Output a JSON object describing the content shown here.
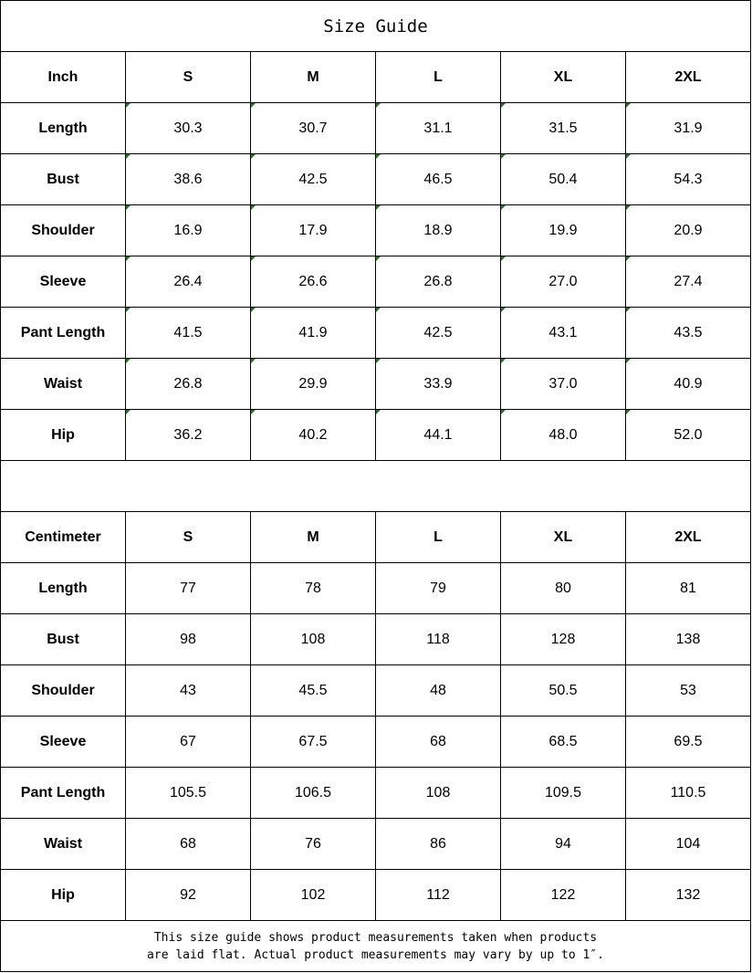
{
  "title": "Size Guide",
  "columns": [
    "S",
    "M",
    "L",
    "XL",
    "2XL"
  ],
  "tables": [
    {
      "unit": "Inch",
      "rows": [
        {
          "label": "Length",
          "values": [
            "30.3",
            "30.7",
            "31.1",
            "31.5",
            "31.9"
          ]
        },
        {
          "label": "Bust",
          "values": [
            "38.6",
            "42.5",
            "46.5",
            "50.4",
            "54.3"
          ]
        },
        {
          "label": "Shoulder",
          "values": [
            "16.9",
            "17.9",
            "18.9",
            "19.9",
            "20.9"
          ]
        },
        {
          "label": "Sleeve",
          "values": [
            "26.4",
            "26.6",
            "26.8",
            "27.0",
            "27.4"
          ]
        },
        {
          "label": "Pant Length",
          "values": [
            "41.5",
            "41.9",
            "42.5",
            "43.1",
            "43.5"
          ]
        },
        {
          "label": "Waist",
          "values": [
            "26.8",
            "29.9",
            "33.9",
            "37.0",
            "40.9"
          ]
        },
        {
          "label": "Hip",
          "values": [
            "36.2",
            "40.2",
            "44.1",
            "48.0",
            "52.0"
          ]
        }
      ]
    },
    {
      "unit": "Centimeter",
      "rows": [
        {
          "label": "Length",
          "values": [
            "77",
            "78",
            "79",
            "80",
            "81"
          ]
        },
        {
          "label": "Bust",
          "values": [
            "98",
            "108",
            "118",
            "128",
            "138"
          ]
        },
        {
          "label": "Shoulder",
          "values": [
            "43",
            "45.5",
            "48",
            "50.5",
            "53"
          ]
        },
        {
          "label": "Sleeve",
          "values": [
            "67",
            "67.5",
            "68",
            "68.5",
            "69.5"
          ]
        },
        {
          "label": "Pant Length",
          "values": [
            "105.5",
            "106.5",
            "108",
            "109.5",
            "110.5"
          ]
        },
        {
          "label": "Waist",
          "values": [
            "68",
            "76",
            "86",
            "94",
            "104"
          ]
        },
        {
          "label": "Hip",
          "values": [
            "92",
            "102",
            "112",
            "122",
            "132"
          ]
        }
      ]
    }
  ],
  "footer": {
    "line1": "This size guide shows product measurements taken when products",
    "line2": "are laid flat. Actual product measurements may vary by up to 1″."
  },
  "colors": {
    "cell_marker": "#1a7a1a"
  }
}
